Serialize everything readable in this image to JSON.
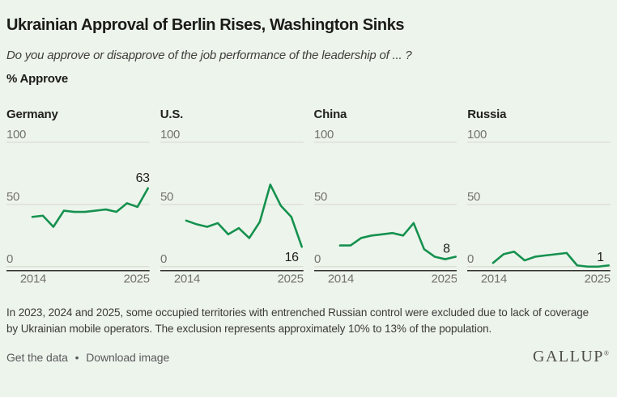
{
  "header": {
    "title": "Ukrainian Approval of Berlin Rises, Washington Sinks",
    "subtitle": "Do you approve or disapprove of the job performance of the leadership of ... ?",
    "measure_label": "% Approve"
  },
  "chart_data": {
    "type": "line",
    "layout": "small-multiples",
    "x": [
      2014,
      2015,
      2016,
      2017,
      2018,
      2019,
      2020,
      2021,
      2022,
      2023,
      2024,
      2025
    ],
    "x_tick_labels": [
      "2014",
      "2025"
    ],
    "y_ticks": [
      100,
      50,
      0
    ],
    "ylim": [
      0,
      100
    ],
    "grid": true,
    "legend": "none",
    "series": [
      {
        "name": "Germany",
        "values": [
          40,
          41,
          32,
          45,
          44,
          44,
          45,
          46,
          44,
          51,
          48,
          63
        ],
        "end_label": "63",
        "label_offset": [
          0,
          -8
        ]
      },
      {
        "name": "U.S.",
        "values": [
          37,
          34,
          32,
          35,
          26,
          31,
          23,
          36,
          66,
          49,
          40,
          16
        ],
        "end_label": "16",
        "label_offset": [
          -6,
          18
        ]
      },
      {
        "name": "China",
        "values": [
          17,
          17,
          23,
          25,
          26,
          27,
          25,
          35,
          14,
          8,
          6,
          8
        ],
        "end_label": "8",
        "label_offset": [
          -9,
          -5
        ]
      },
      {
        "name": "Russia",
        "values": [
          3,
          10,
          12,
          5,
          8,
          9,
          10,
          11,
          1,
          0,
          0,
          1
        ],
        "end_label": "1",
        "label_offset": [
          -8,
          -5
        ]
      }
    ],
    "line_color": "#15914e"
  },
  "footnote": "In 2023, 2024 and 2025, some occupied territories with entrenched Russian control were excluded due to lack of coverage by Ukrainian mobile operators. The exclusion represents approximately 10% to 13% of the population.",
  "footer": {
    "links": [
      {
        "label": "Get the data"
      },
      {
        "label": "Download image"
      }
    ],
    "separator": "•",
    "brand": "GALLUP",
    "brand_mark": "®"
  },
  "colors": {
    "background": "#edf4ec",
    "line": "#15914e",
    "gridline": "#d7d7cf",
    "axis": "#32322e",
    "tick_text": "#73736c",
    "value_label": "#1d1d1a"
  }
}
